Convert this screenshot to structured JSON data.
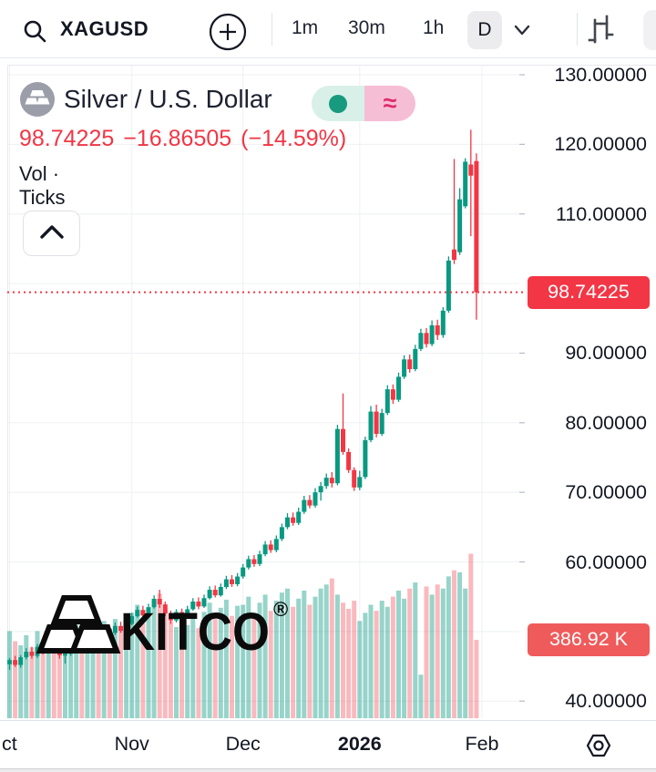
{
  "toolbar": {
    "symbol": "XAGUSD",
    "intervals": [
      "1m",
      "30m",
      "1h"
    ],
    "selected_interval": "D"
  },
  "legend": {
    "title": "Silver / U.S. Dollar",
    "price": "98.74225",
    "change": "−16.86505",
    "change_pct": "(−14.59%)",
    "indicators": "Vol · Ticks",
    "status_symbol": "≈"
  },
  "watermark": {
    "brand": "KITCO",
    "registered": "®"
  },
  "price_axis": {
    "price_badge": "98.74225",
    "volume_badge": "386.92 K"
  },
  "colors": {
    "up": "#089981",
    "down": "#f23645",
    "vol_up": "rgba(8,153,129,0.42)",
    "vol_down": "rgba(242,54,69,0.35)",
    "accent_red": "#f23645",
    "vol_badge_red": "#ef5b5b",
    "grid": "#eef0f4",
    "tick": "#b8bcc6",
    "pane_border": "#e7e9ef"
  },
  "chart_data": {
    "type": "candlestick",
    "symbol": "XAGUSD",
    "title": "Silver / U.S. Dollar",
    "timeframe": "D",
    "last_price": 98.74225,
    "change": -16.86505,
    "change_pct": -14.59,
    "price_line": 98.74225,
    "y_axis": {
      "min": 40,
      "max": 131,
      "tick_step": 10,
      "gridline_prices": [
        130,
        120,
        110,
        100,
        90,
        80,
        70,
        60,
        50,
        40
      ],
      "labels": [
        {
          "text": "130.00000",
          "value": 130
        },
        {
          "text": "120.00000",
          "value": 120
        },
        {
          "text": "110.00000",
          "value": 110
        },
        {
          "text": "90.00000",
          "value": 90
        },
        {
          "text": "80.00000",
          "value": 80
        },
        {
          "text": "70.00000",
          "value": 70
        },
        {
          "text": "60.00000",
          "value": 60
        },
        {
          "text": "40.00000",
          "value": 40
        }
      ]
    },
    "x_axis": {
      "month_ticks": [
        {
          "label": "ct",
          "index": 0,
          "bold": false
        },
        {
          "label": "Nov",
          "index": 22,
          "bold": false
        },
        {
          "label": "Dec",
          "index": 42,
          "bold": false
        },
        {
          "label": "2026",
          "index": 63,
          "bold": true
        },
        {
          "label": "Feb",
          "index": 85,
          "bold": false
        }
      ]
    },
    "candles": [
      [
        45.3,
        46.2,
        44.5,
        45.9
      ],
      [
        45.9,
        46.5,
        44.9,
        45.2
      ],
      [
        45.2,
        46.6,
        44.8,
        46.3
      ],
      [
        46.3,
        47.6,
        46.0,
        47.1
      ],
      [
        47.1,
        47.8,
        46.1,
        46.5
      ],
      [
        46.5,
        48.2,
        46.2,
        47.8
      ],
      [
        47.8,
        48.3,
        46.7,
        47.0
      ],
      [
        47.0,
        48.7,
        46.8,
        48.3
      ],
      [
        48.3,
        48.9,
        47.2,
        47.6
      ],
      [
        47.6,
        48.0,
        46.1,
        46.6
      ],
      [
        46.6,
        47.3,
        45.4,
        46.8
      ],
      [
        46.8,
        48.3,
        46.5,
        47.9
      ],
      [
        47.9,
        49.3,
        47.6,
        48.8
      ],
      [
        48.8,
        49.4,
        47.8,
        48.1
      ],
      [
        48.1,
        49.7,
        47.9,
        49.2
      ],
      [
        49.2,
        50.5,
        48.9,
        50.0
      ],
      [
        50.0,
        50.7,
        48.9,
        49.3
      ],
      [
        49.3,
        50.9,
        49.1,
        50.4
      ],
      [
        50.4,
        51.0,
        49.4,
        49.8
      ],
      [
        49.8,
        51.3,
        49.5,
        50.8
      ],
      [
        50.8,
        51.4,
        49.8,
        50.1
      ],
      [
        50.1,
        51.6,
        49.9,
        51.1
      ],
      [
        51.1,
        52.7,
        50.9,
        52.2
      ],
      [
        52.2,
        53.6,
        52.0,
        53.1
      ],
      [
        53.1,
        53.7,
        52.0,
        52.3
      ],
      [
        52.3,
        54.0,
        52.1,
        53.5
      ],
      [
        53.5,
        55.2,
        53.3,
        54.7
      ],
      [
        54.7,
        56.0,
        53.4,
        53.9
      ],
      [
        53.9,
        54.3,
        52.2,
        52.6
      ],
      [
        52.6,
        53.0,
        51.1,
        51.6
      ],
      [
        51.6,
        53.2,
        51.3,
        52.8
      ],
      [
        52.8,
        53.3,
        51.7,
        52.0
      ],
      [
        52.0,
        53.7,
        51.8,
        53.2
      ],
      [
        53.2,
        54.8,
        53.0,
        54.3
      ],
      [
        54.3,
        54.9,
        53.2,
        53.6
      ],
      [
        53.6,
        55.3,
        53.4,
        54.8
      ],
      [
        54.8,
        56.5,
        54.6,
        56.0
      ],
      [
        56.0,
        56.6,
        54.9,
        55.2
      ],
      [
        55.2,
        56.9,
        55.0,
        56.4
      ],
      [
        56.4,
        58.0,
        56.1,
        57.5
      ],
      [
        57.5,
        58.1,
        56.4,
        56.8
      ],
      [
        56.8,
        58.4,
        56.5,
        57.9
      ],
      [
        57.9,
        59.7,
        57.6,
        59.2
      ],
      [
        59.2,
        60.9,
        58.9,
        60.4
      ],
      [
        60.4,
        61.0,
        59.3,
        59.7
      ],
      [
        59.7,
        61.6,
        59.4,
        61.1
      ],
      [
        61.1,
        63.0,
        60.8,
        62.5
      ],
      [
        62.5,
        63.1,
        61.3,
        61.7
      ],
      [
        61.7,
        63.8,
        61.4,
        63.3
      ],
      [
        63.3,
        65.5,
        63.0,
        65.0
      ],
      [
        65.0,
        67.0,
        64.7,
        66.4
      ],
      [
        66.4,
        67.1,
        65.2,
        65.6
      ],
      [
        65.6,
        67.8,
        65.3,
        67.2
      ],
      [
        67.2,
        69.5,
        66.9,
        68.9
      ],
      [
        68.9,
        69.6,
        67.7,
        68.1
      ],
      [
        68.1,
        70.6,
        67.8,
        70.0
      ],
      [
        70.0,
        71.5,
        68.8,
        70.9
      ],
      [
        70.9,
        72.7,
        70.5,
        72.1
      ],
      [
        72.1,
        72.9,
        70.7,
        71.3
      ],
      [
        71.3,
        79.7,
        71.0,
        79.1
      ],
      [
        79.1,
        84.2,
        75.4,
        75.8
      ],
      [
        75.8,
        76.3,
        72.8,
        73.2
      ],
      [
        73.2,
        73.6,
        70.2,
        70.7
      ],
      [
        70.7,
        73.1,
        70.3,
        72.2
      ],
      [
        72.2,
        78.0,
        71.9,
        77.5
      ],
      [
        77.5,
        82.4,
        77.2,
        81.6
      ],
      [
        81.6,
        82.6,
        77.9,
        78.4
      ],
      [
        78.4,
        82.0,
        78.1,
        81.4
      ],
      [
        81.4,
        85.4,
        81.1,
        84.8
      ],
      [
        84.8,
        85.5,
        82.7,
        83.3
      ],
      [
        83.3,
        87.2,
        83.0,
        86.6
      ],
      [
        86.6,
        89.7,
        86.3,
        89.1
      ],
      [
        89.1,
        89.8,
        87.2,
        87.7
      ],
      [
        87.7,
        91.2,
        87.4,
        90.6
      ],
      [
        90.6,
        93.5,
        90.3,
        92.9
      ],
      [
        92.9,
        93.6,
        90.8,
        91.3
      ],
      [
        91.3,
        94.7,
        91.0,
        94.0
      ],
      [
        94.0,
        94.8,
        91.9,
        92.6
      ],
      [
        92.6,
        96.6,
        92.2,
        96.1
      ],
      [
        96.1,
        103.9,
        95.8,
        103.3
      ],
      [
        104.9,
        117.9,
        102.8,
        103.4
      ],
      [
        104.5,
        113.7,
        104.1,
        112.1
      ],
      [
        111.1,
        118.0,
        110.8,
        117.5
      ],
      [
        117.1,
        122.1,
        106.8,
        115.5
      ],
      [
        117.6,
        118.7,
        94.8,
        98.74225
      ]
    ],
    "volumes_k": [
      430,
      380,
      360,
      410,
      350,
      430,
      370,
      450,
      390,
      360,
      400,
      440,
      470,
      410,
      460,
      500,
      420,
      480,
      430,
      490,
      440,
      510,
      520,
      560,
      470,
      510,
      580,
      615,
      540,
      480,
      450,
      430,
      460,
      500,
      445,
      525,
      570,
      490,
      545,
      585,
      505,
      555,
      560,
      600,
      520,
      570,
      610,
      530,
      580,
      620,
      640,
      550,
      590,
      630,
      560,
      600,
      640,
      660,
      690,
      610,
      570,
      540,
      580,
      480,
      520,
      560,
      530,
      580,
      550,
      600,
      630,
      590,
      640,
      670,
      215,
      650,
      610,
      660,
      640,
      700,
      730,
      720,
      640,
      812,
      386.92
    ],
    "last_volume_label": "386.92 K"
  }
}
